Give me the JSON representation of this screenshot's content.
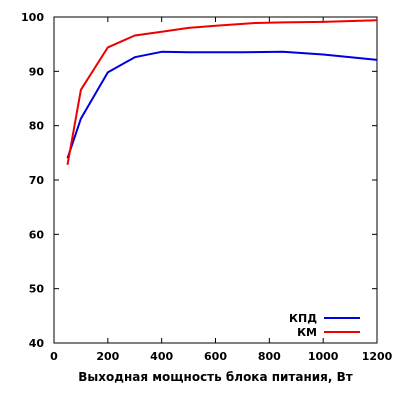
{
  "chart_data": {
    "type": "line",
    "title": "",
    "xlabel": "Выходная мощность блока питания, Вт",
    "ylabel": "",
    "xlim": [
      0,
      1200
    ],
    "ylim": [
      40,
      100
    ],
    "xticks": [
      0,
      200,
      400,
      600,
      800,
      1000,
      1200
    ],
    "yticks": [
      40,
      50,
      60,
      70,
      80,
      90,
      100
    ],
    "grid": false,
    "legend": "bottom-right",
    "series": [
      {
        "name": "КПД",
        "color": "#0000dd",
        "x": [
          50,
          100,
          200,
          300,
          400,
          500,
          600,
          700,
          850,
          1000,
          1200
        ],
        "y": [
          74.0,
          81.3,
          89.8,
          92.6,
          93.6,
          93.5,
          93.5,
          93.5,
          93.6,
          93.1,
          92.1
        ]
      },
      {
        "name": "КМ",
        "color": "#ee0000",
        "x": [
          50,
          100,
          200,
          300,
          400,
          500,
          600,
          750,
          850,
          1000,
          1200
        ],
        "y": [
          72.8,
          86.6,
          94.4,
          96.6,
          97.3,
          98.0,
          98.4,
          98.9,
          99.0,
          99.1,
          99.4
        ]
      }
    ]
  }
}
